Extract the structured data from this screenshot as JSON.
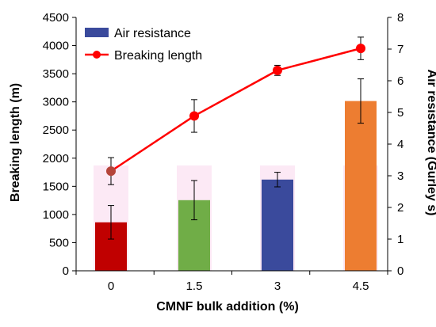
{
  "chart_data": {
    "type": "bar",
    "xlabel": "CMNF bulk addition (%)",
    "ylabel_left": "Breaking length (m)",
    "ylabel_right": "Air resistance (Gurley s)",
    "categories": [
      "0",
      "1.5",
      "3",
      "4.5"
    ],
    "ylim_left": [
      0,
      4500
    ],
    "ylim_right": [
      0,
      8
    ],
    "yticks_left": [
      "0",
      "500",
      "1000",
      "1500",
      "2000",
      "2500",
      "3000",
      "3500",
      "4000",
      "4500"
    ],
    "yticks_right": [
      "0",
      "1",
      "2",
      "3",
      "4",
      "5",
      "6",
      "7",
      "8"
    ],
    "series": [
      {
        "name": "Air resistance",
        "kind": "bar",
        "axis": "right",
        "values": [
          1.53,
          2.23,
          2.88,
          5.36
        ],
        "error": [
          0.53,
          0.62,
          0.23,
          0.7
        ],
        "colors": [
          "#c00000",
          "#70ad47",
          "#3a4a9c",
          "#ed7d31"
        ],
        "legend_color": "#3a4a9c"
      },
      {
        "name": "Breaking length",
        "kind": "line",
        "axis": "left",
        "values": [
          1770,
          2750,
          3560,
          3950
        ],
        "error": [
          240,
          290,
          90,
          200
        ],
        "color": "#ff0000"
      }
    ],
    "legend": "top-left",
    "grid": false
  }
}
